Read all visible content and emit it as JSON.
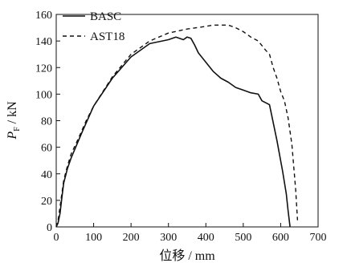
{
  "chart_data": {
    "type": "line",
    "xlabel": "位移 / mm",
    "ylabel": {
      "symbol": "P",
      "subscript": "F",
      "unit": " / kN"
    },
    "xlim": [
      0,
      700
    ],
    "ylim": [
      0,
      160
    ],
    "xticks": [
      "0",
      "100",
      "200",
      "300",
      "400",
      "500",
      "600",
      "700"
    ],
    "yticks": [
      "0",
      "20",
      "40",
      "60",
      "80",
      "100",
      "120",
      "140",
      "160"
    ],
    "legend_position": "top-left",
    "grid": false,
    "series": [
      {
        "name": "BASC",
        "style": "solid",
        "x": [
          0,
          5,
          10,
          15,
          20,
          30,
          40,
          55,
          70,
          100,
          150,
          200,
          250,
          300,
          320,
          340,
          350,
          360,
          370,
          380,
          400,
          420,
          440,
          460,
          480,
          500,
          520,
          540,
          550,
          570,
          590,
          605,
          615,
          620,
          625
        ],
        "y": [
          0,
          3,
          10,
          22,
          33,
          44,
          52,
          62,
          72,
          91,
          112,
          128,
          138,
          141,
          143,
          141,
          143,
          142,
          137,
          131,
          124,
          117,
          112,
          109,
          105,
          103,
          101,
          100,
          95,
          92,
          65,
          42,
          25,
          12,
          0
        ]
      },
      {
        "name": "AST18",
        "style": "dashed",
        "x": [
          0,
          5,
          10,
          20,
          30,
          40,
          60,
          80,
          100,
          150,
          200,
          250,
          300,
          350,
          400,
          420,
          440,
          460,
          480,
          500,
          520,
          540,
          560,
          570,
          580,
          590,
          600,
          610,
          620,
          630,
          640,
          645
        ],
        "y": [
          0,
          5,
          15,
          35,
          46,
          55,
          67,
          80,
          91,
          113,
          130,
          140,
          146,
          149,
          151,
          152,
          152,
          152,
          150,
          147,
          143,
          140,
          133,
          130,
          120,
          112,
          102,
          95,
          82,
          62,
          28,
          5
        ]
      }
    ]
  }
}
